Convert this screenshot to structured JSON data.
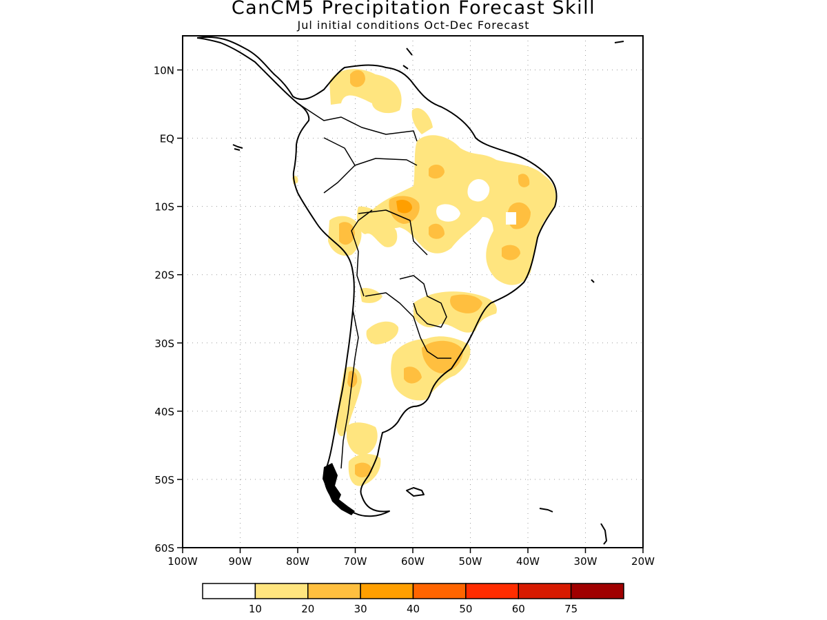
{
  "title": "CanCM5 Precipitation Forecast Skill",
  "subtitle": "Jul initial conditions   Oct-Dec Forecast",
  "map": {
    "region": "South America",
    "lon_range": [
      -100,
      -20
    ],
    "lat_range": [
      -60,
      15
    ],
    "grid": true,
    "y_ticks": [
      "10N",
      "EQ",
      "10S",
      "20S",
      "30S",
      "40S",
      "50S",
      "60S"
    ],
    "x_ticks": [
      "100W",
      "90W",
      "80W",
      "70W",
      "60W",
      "50W",
      "40W",
      "30W",
      "20W"
    ]
  },
  "colorbar": {
    "colors": [
      "#ffffff",
      "#ffe57f",
      "#ffbf3f",
      "#ff9f00",
      "#ff6500",
      "#ff2d00",
      "#d71a00",
      "#a00000"
    ],
    "labels": [
      "10",
      "20",
      "30",
      "40",
      "50",
      "60",
      "75"
    ]
  }
}
